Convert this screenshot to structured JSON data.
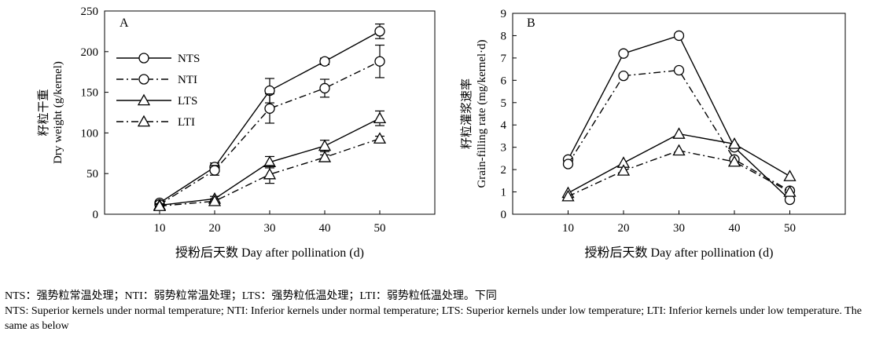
{
  "chart_data": [
    {
      "type": "line",
      "panel_label": "A",
      "xlabel": "授粉后天数 Day after pollination (d)",
      "ylabel_cn": "籽粒干重",
      "ylabel": "Dry weight (g/kernel)",
      "x": [
        10,
        20,
        30,
        40,
        50
      ],
      "xticks": [
        "10",
        "20",
        "30",
        "40",
        "50"
      ],
      "xlim": [
        0,
        60
      ],
      "ylim": [
        0,
        250
      ],
      "yticks": [
        "0",
        "50",
        "100",
        "150",
        "200",
        "250"
      ],
      "grid": false,
      "legend_position": "top-left",
      "series": [
        {
          "name": "NTS",
          "marker": "circle",
          "line": "solid",
          "values": [
            14,
            58,
            152,
            188,
            225
          ],
          "errors": [
            2,
            5,
            15,
            4,
            9
          ]
        },
        {
          "name": "NTI",
          "marker": "circle",
          "line": "dashdot",
          "values": [
            12,
            54,
            130,
            155,
            188
          ],
          "errors": [
            2,
            6,
            18,
            11,
            20
          ]
        },
        {
          "name": "LTS",
          "marker": "triangle",
          "line": "solid",
          "values": [
            11,
            19,
            64,
            84,
            118
          ],
          "errors": [
            2,
            3,
            7,
            7,
            9
          ]
        },
        {
          "name": "LTI",
          "marker": "triangle",
          "line": "dashdot",
          "values": [
            10,
            16,
            49,
            70,
            93
          ],
          "errors": [
            2,
            3,
            11,
            3,
            3
          ]
        }
      ]
    },
    {
      "type": "line",
      "panel_label": "B",
      "xlabel": "授粉后天数 Day after pollination (d)",
      "ylabel_cn": "籽粒灌浆速率",
      "ylabel": "Grain-filling rate (mg/kernel·d)",
      "x": [
        10,
        20,
        30,
        40,
        50
      ],
      "xticks": [
        "10",
        "20",
        "30",
        "40",
        "50"
      ],
      "xlim": [
        0,
        60
      ],
      "ylim": [
        0,
        9
      ],
      "yticks": [
        "0",
        "1",
        "2",
        "3",
        "4",
        "5",
        "6",
        "7",
        "8",
        "9"
      ],
      "grid": false,
      "series": [
        {
          "name": "NTS",
          "marker": "circle",
          "line": "solid",
          "values": [
            2.45,
            7.2,
            8.0,
            3.0,
            0.65
          ]
        },
        {
          "name": "NTI",
          "marker": "circle",
          "line": "dashdot",
          "values": [
            2.25,
            6.2,
            6.45,
            2.45,
            1.05
          ]
        },
        {
          "name": "LTS",
          "marker": "triangle",
          "line": "solid",
          "values": [
            0.95,
            2.3,
            3.6,
            3.15,
            1.7
          ]
        },
        {
          "name": "LTI",
          "marker": "triangle",
          "line": "dashdot",
          "values": [
            0.8,
            1.95,
            2.85,
            2.35,
            1.0
          ]
        }
      ]
    }
  ],
  "caption": {
    "line_cn": "NTS：强势粒常温处理；NTI：弱势粒常温处理；LTS：强势粒低温处理；LTI：弱势粒低温处理。下同",
    "line_en": "NTS: Superior kernels under normal temperature; NTI: Inferior kernels under normal temperature; LTS: Superior kernels under low temperature; LTI: Inferior kernels under low temperature. The same as below"
  }
}
